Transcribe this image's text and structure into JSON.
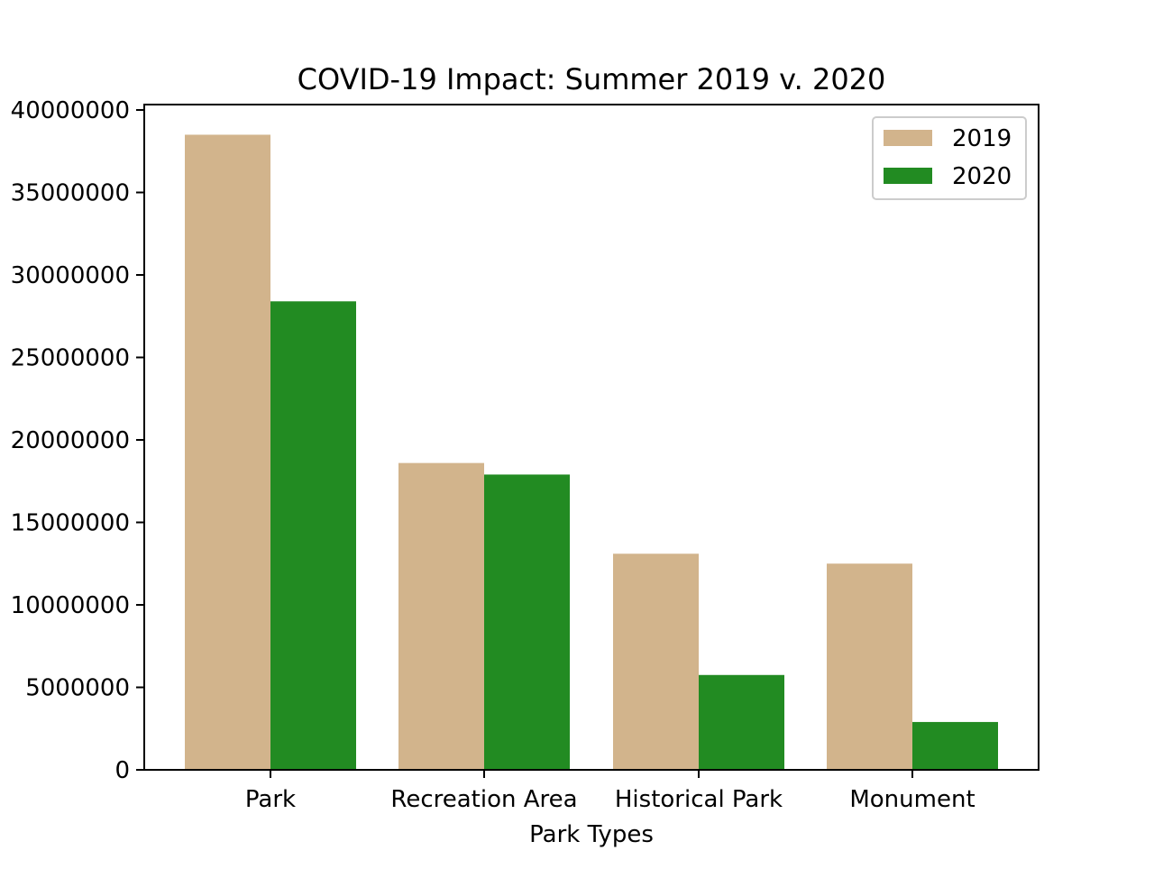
{
  "chart_data": {
    "type": "bar",
    "title": "COVID-19 Impact: Summer 2019 v. 2020",
    "xlabel": "Park Types",
    "ylabel": "",
    "categories": [
      "Park",
      "Recreation Area",
      "Historical Park",
      "Monument"
    ],
    "series": [
      {
        "name": "2019",
        "color": "#d2b48c",
        "values": [
          38500000,
          18600000,
          13100000,
          12500000
        ]
      },
      {
        "name": "2020",
        "color": "#228b22",
        "values": [
          28400000,
          17900000,
          5750000,
          2900000
        ]
      }
    ],
    "ylim": [
      0,
      40000000
    ],
    "yticks": [
      0,
      5000000,
      10000000,
      15000000,
      20000000,
      25000000,
      30000000,
      35000000,
      40000000
    ],
    "ytick_labels": [
      "0",
      "5000000",
      "10000000",
      "15000000",
      "20000000",
      "25000000",
      "30000000",
      "35000000",
      "40000000"
    ],
    "grid": false,
    "legend_position": "top-right"
  }
}
